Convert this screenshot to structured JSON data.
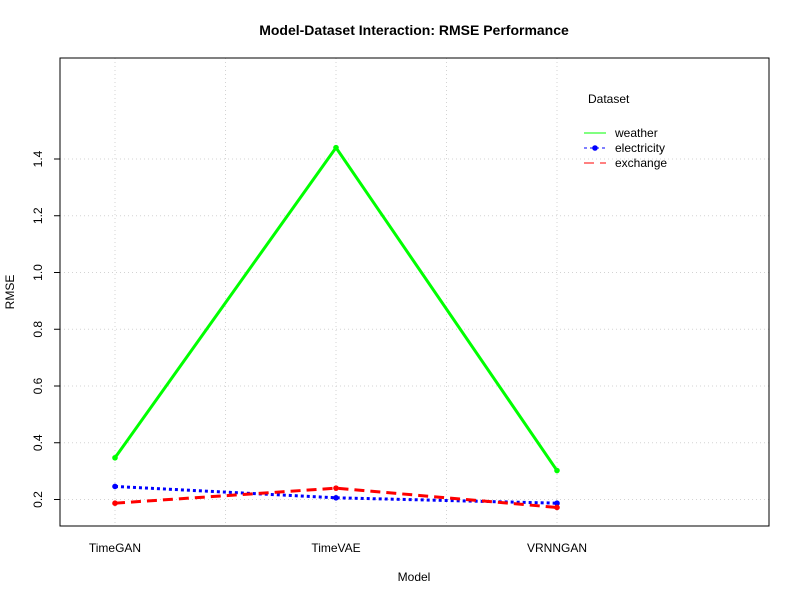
{
  "chart_data": {
    "type": "line",
    "title": "Model-Dataset Interaction: RMSE Performance",
    "xlabel": "Model",
    "ylabel": "RMSE",
    "categories": [
      "TimeGAN",
      "TimeVAE",
      "VRNNGAN"
    ],
    "ylim": [
      0.13,
      1.5
    ],
    "yticks": [
      0.2,
      0.4,
      0.6,
      0.8,
      1.0,
      1.2,
      1.4
    ],
    "ytick_labels": [
      "0.2",
      "0.4",
      "0.6",
      "0.8",
      "1.0",
      "1.2",
      "1.4"
    ],
    "grid": true,
    "legend": {
      "title": "Dataset",
      "placement": "top-right"
    },
    "series": [
      {
        "name": "weather",
        "values": [
          0.347,
          1.44,
          0.302
        ],
        "color": "#00ff00",
        "dash": "solid"
      },
      {
        "name": "electricity",
        "values": [
          0.246,
          0.206,
          0.187
        ],
        "color": "#0000ff",
        "dash": "dotted"
      },
      {
        "name": "exchange",
        "values": [
          0.187,
          0.24,
          0.172
        ],
        "color": "#ff0000",
        "dash": "dashed"
      }
    ]
  }
}
